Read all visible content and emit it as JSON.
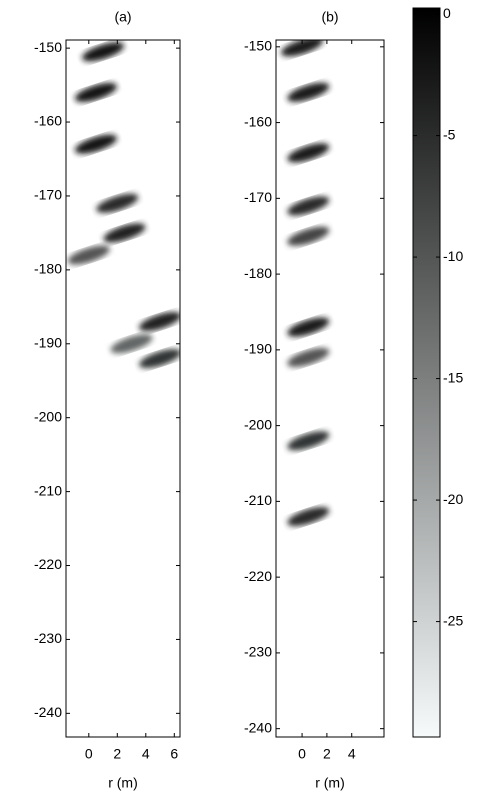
{
  "chart_data": [
    {
      "type": "heatmap",
      "title": "(a)",
      "x_label": "r (m)",
      "xlim": [
        -1.6,
        6.4
      ],
      "xticks": [
        0,
        2,
        4,
        6
      ],
      "ylim": [
        -243.2,
        -148.9
      ],
      "yticks": [
        -150,
        -160,
        -170,
        -180,
        -190,
        -200,
        -210,
        -220,
        -230,
        -240
      ],
      "x": [
        1,
        0.5,
        0.5,
        2,
        2.5,
        0,
        5,
        5,
        3
      ],
      "y": [
        -150.5,
        -156,
        -163,
        -171,
        -175,
        -178,
        -187,
        -192,
        -190
      ],
      "values": [
        -2,
        -2,
        -2,
        -5,
        -4,
        -10,
        -4,
        -6,
        -12
      ]
    },
    {
      "type": "heatmap",
      "title": "(b)",
      "x_label": "r (m)",
      "xlim": [
        -2.1,
        6.6
      ],
      "xticks": [
        0,
        2,
        4
      ],
      "ylim": [
        -241.1,
        -149.1
      ],
      "yticks": [
        -150,
        -160,
        -170,
        -180,
        -190,
        -200,
        -210,
        -220,
        -230,
        -240
      ],
      "x": [
        0,
        0.5,
        0.5,
        0.5,
        0.5,
        0.5,
        0.5,
        0.5,
        0.5
      ],
      "y": [
        -150,
        -156,
        -164,
        -171,
        -175,
        -187,
        -191,
        -202,
        -212
      ],
      "values": [
        -3,
        -3,
        -3,
        -5,
        -8,
        -3,
        -10,
        -6,
        -5
      ]
    },
    {
      "type": "colorbar",
      "colormap": [
        "#000000",
        "#f6fafa"
      ],
      "ylim": [
        -29.75,
        0.25
      ],
      "yticks": [
        0,
        -5,
        -10,
        -15,
        -20,
        -25
      ]
    }
  ]
}
